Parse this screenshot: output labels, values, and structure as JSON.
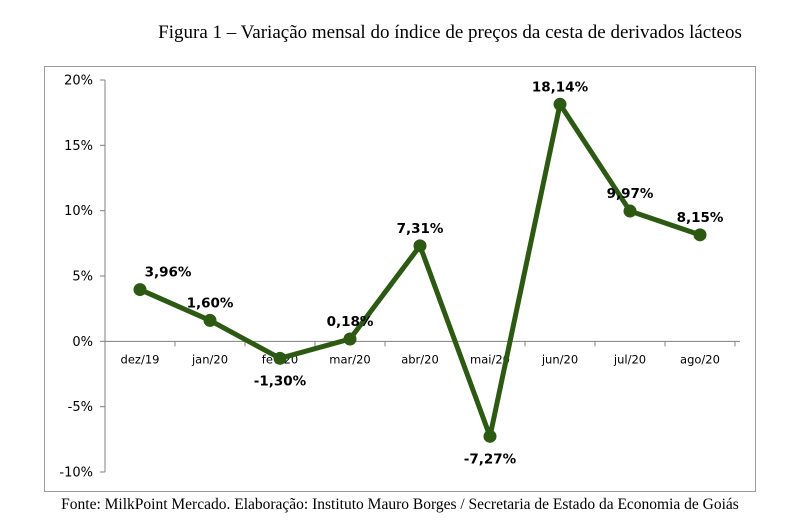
{
  "title": "Figura 1 – Variação mensal do índice de preços da cesta de derivados lácteos",
  "source": "Fonte: MilkPoint Mercado. Elaboração: Instituto Mauro Borges / Secretaria de Estado da Economia de Goiás",
  "colors": {
    "line": "#2d5a12",
    "marker": "#2d5a12",
    "axis": "#7f7f7f"
  },
  "chart_data": {
    "type": "line",
    "title": "Figura 1 – Variação mensal do índice de preços da cesta de derivados lácteos",
    "xlabel": "",
    "ylabel": "",
    "categories": [
      "dez/19",
      "jan/20",
      "fev/20",
      "mar/20",
      "abr/20",
      "mai/20",
      "jun/20",
      "jul/20",
      "ago/20"
    ],
    "series": [
      {
        "values": [
          3.96,
          1.6,
          -1.3,
          0.18,
          7.31,
          -7.27,
          18.14,
          9.97,
          8.15
        ],
        "labels": [
          "3,96%",
          "1,60%",
          "-1,30%",
          "0,18%",
          "7,31%",
          "-7,27%",
          "18,14%",
          "9,97%",
          "8,15%"
        ]
      }
    ],
    "ylim": [
      -10,
      20
    ],
    "yticks": [
      20,
      15,
      10,
      5,
      0,
      -5,
      -10
    ],
    "ytick_labels": [
      "20%",
      "15%",
      "10%",
      "5%",
      "0%",
      "-5%",
      "-10%"
    ],
    "grid": false,
    "legend": "none"
  }
}
